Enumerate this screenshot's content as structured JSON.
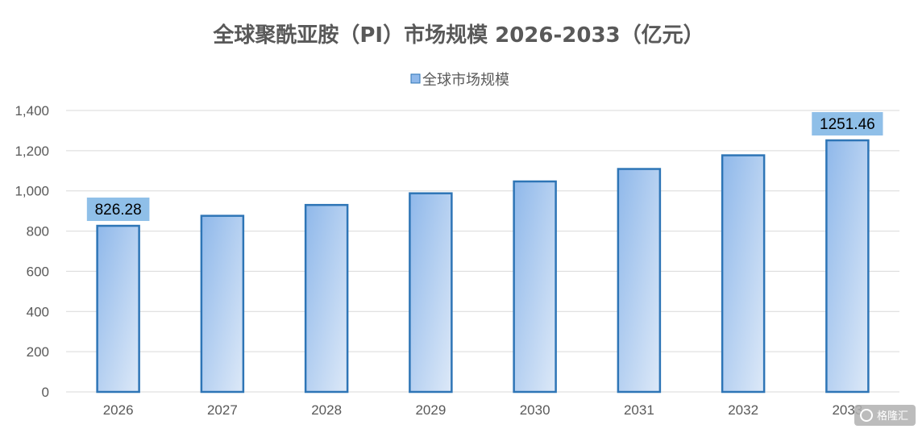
{
  "chart_data": {
    "type": "bar",
    "title": "全球聚酰亚胺（PI）市场规模 2026-2033（亿元）",
    "xlabel": "",
    "ylabel": "",
    "categories": [
      "2026",
      "2027",
      "2028",
      "2029",
      "2030",
      "2031",
      "2032",
      "2033"
    ],
    "series": [
      {
        "name": "全球市场规模",
        "values": [
          826.28,
          876,
          930,
          988,
          1047,
          1109,
          1177,
          1251.46
        ]
      }
    ],
    "data_labels": [
      {
        "index": 0,
        "text": "826.28"
      },
      {
        "index": 7,
        "text": "1251.46"
      }
    ],
    "ylim": [
      0,
      1400
    ],
    "yticks": [
      0,
      200,
      400,
      600,
      800,
      1000,
      1200,
      1400
    ],
    "ytick_labels": [
      "0",
      "200",
      "400",
      "600",
      "800",
      "1,000",
      "1,200",
      "1,400"
    ],
    "grid": true,
    "legend_position": "top-center",
    "colors": {
      "bar_fill_top": "#8fb8ea",
      "bar_fill_bottom": "#dde9f8",
      "bar_stroke": "#2e75b6",
      "label_bg": "#8fbfe8",
      "grid": "#d9d9d9",
      "text": "#595959"
    }
  },
  "watermark": {
    "icon": "gelonghui-logo-icon",
    "text": "格隆汇"
  }
}
